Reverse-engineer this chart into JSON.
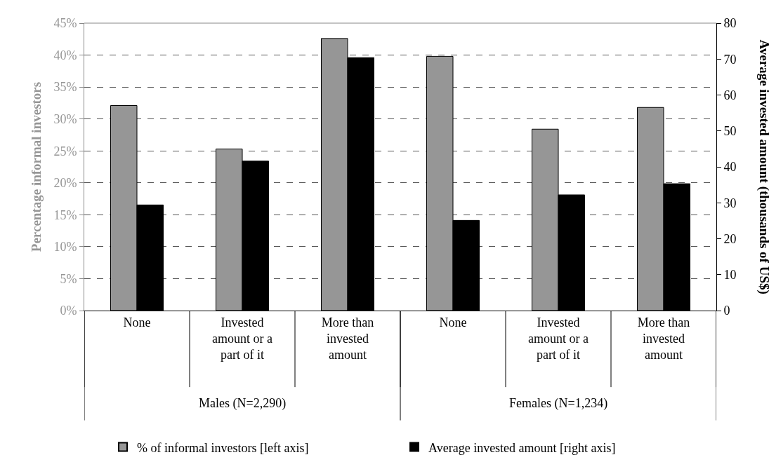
{
  "chart_data": {
    "type": "bar",
    "categories": [
      "None",
      "Invested amount or a part of it",
      "More than invested amount",
      "None",
      "Invested amount or a part of it",
      "More than invested amount"
    ],
    "series": [
      {
        "name": "% of informal investors [left axis]",
        "color": "#969696",
        "values": [
          32.1,
          25.3,
          42.6,
          39.8,
          28.4,
          31.8
        ]
      },
      {
        "name": "Average invested amount [right axis]",
        "color": "#000000",
        "axis": "y2",
        "values": [
          29.4,
          41.6,
          70.4,
          25.1,
          32.2,
          35.3
        ]
      }
    ],
    "ylabel": "Percentage informal investors",
    "y2label": "Average invested amount (thousands of US$)",
    "ylim": [
      0,
      45
    ],
    "yticks": [
      {
        "value": 0,
        "label": "0%"
      },
      {
        "value": 5,
        "label": "5%"
      },
      {
        "value": 10,
        "label": "10%"
      },
      {
        "value": 15,
        "label": "15%"
      },
      {
        "value": 20,
        "label": "20%"
      },
      {
        "value": 25,
        "label": "25%"
      },
      {
        "value": 30,
        "label": "30%"
      },
      {
        "value": 35,
        "label": "35%"
      },
      {
        "value": 40,
        "label": "40%"
      },
      {
        "value": 45,
        "label": "45%"
      }
    ],
    "y2lim": [
      0,
      80
    ],
    "y2ticks": [
      0,
      10,
      20,
      30,
      40,
      50,
      60,
      70,
      80
    ],
    "annotations": [
      "Males (N=2,290)",
      "Females (N=1,234)"
    ],
    "grid": "y",
    "legend": "bottom"
  }
}
